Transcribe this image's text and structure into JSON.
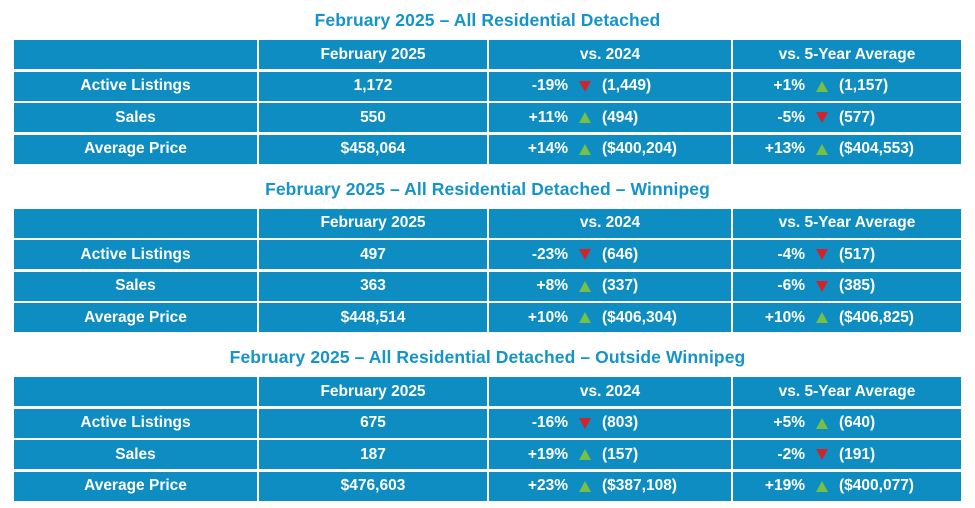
{
  "colors": {
    "table_blue": "#0E8DC3",
    "title_blue": "#1494CB",
    "up_green": "#76C043",
    "down_red": "#D3222A",
    "text_white": "#FFFFFF"
  },
  "chart_data": [
    {
      "type": "table",
      "title": "February 2025 – All Residential Detached",
      "columns": [
        "",
        "February 2025",
        "vs. 2024",
        "vs. 5-Year Average"
      ],
      "rows": [
        {
          "label": "Active Listings",
          "current": "1,172",
          "vs2024": {
            "pct": "-19%",
            "dir": "down",
            "value": "(1,449)"
          },
          "vs5yr": {
            "pct": "+1%",
            "dir": "up",
            "value": "(1,157)"
          }
        },
        {
          "label": "Sales",
          "current": "550",
          "vs2024": {
            "pct": "+11%",
            "dir": "up",
            "value": "(494)"
          },
          "vs5yr": {
            "pct": "-5%",
            "dir": "down",
            "value": "(577)"
          }
        },
        {
          "label": "Average Price",
          "current": "$458,064",
          "vs2024": {
            "pct": "+14%",
            "dir": "up",
            "value": "($400,204)"
          },
          "vs5yr": {
            "pct": "+13%",
            "dir": "up",
            "value": "($404,553)"
          }
        }
      ]
    },
    {
      "type": "table",
      "title": "February 2025 – All Residential Detached – Winnipeg",
      "columns": [
        "",
        "February 2025",
        "vs. 2024",
        "vs. 5-Year Average"
      ],
      "rows": [
        {
          "label": "Active Listings",
          "current": "497",
          "vs2024": {
            "pct": "-23%",
            "dir": "down",
            "value": "(646)"
          },
          "vs5yr": {
            "pct": "-4%",
            "dir": "down",
            "value": "(517)"
          }
        },
        {
          "label": "Sales",
          "current": "363",
          "vs2024": {
            "pct": "+8%",
            "dir": "up",
            "value": "(337)"
          },
          "vs5yr": {
            "pct": "-6%",
            "dir": "down",
            "value": "(385)"
          }
        },
        {
          "label": "Average Price",
          "current": "$448,514",
          "vs2024": {
            "pct": "+10%",
            "dir": "up",
            "value": "($406,304)"
          },
          "vs5yr": {
            "pct": "+10%",
            "dir": "up",
            "value": "($406,825)"
          }
        }
      ]
    },
    {
      "type": "table",
      "title": "February 2025 – All Residential Detached – Outside Winnipeg",
      "columns": [
        "",
        "February 2025",
        "vs. 2024",
        "vs. 5-Year Average"
      ],
      "rows": [
        {
          "label": "Active Listings",
          "current": "675",
          "vs2024": {
            "pct": "-16%",
            "dir": "down",
            "value": "(803)"
          },
          "vs5yr": {
            "pct": "+5%",
            "dir": "up",
            "value": "(640)"
          }
        },
        {
          "label": "Sales",
          "current": "187",
          "vs2024": {
            "pct": "+19%",
            "dir": "up",
            "value": "(157)"
          },
          "vs5yr": {
            "pct": "-2%",
            "dir": "down",
            "value": "(191)"
          }
        },
        {
          "label": "Average Price",
          "current": "$476,603",
          "vs2024": {
            "pct": "+23%",
            "dir": "up",
            "value": "($387,108)"
          },
          "vs5yr": {
            "pct": "+19%",
            "dir": "up",
            "value": "($400,077)"
          }
        }
      ]
    }
  ]
}
